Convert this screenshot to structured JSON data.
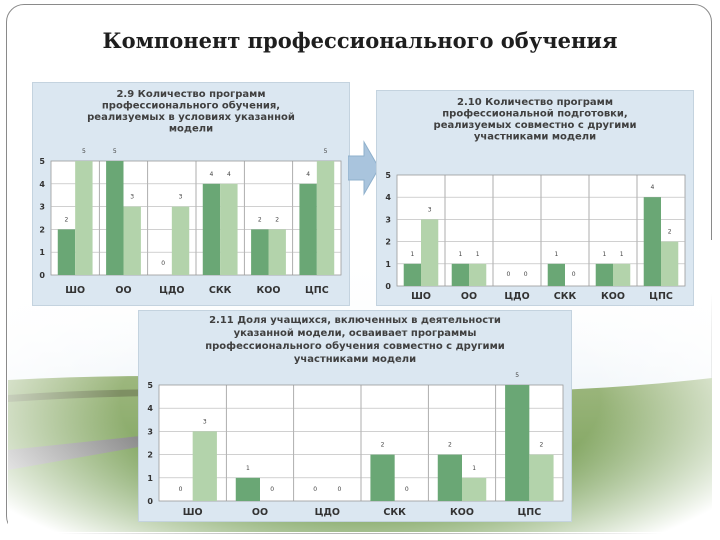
{
  "slide": {
    "title": "Компонент профессионального обучения",
    "colors": {
      "series_dark": "#6aa775",
      "series_light": "#b3d3ab",
      "panel_bg": "#dbe7f1",
      "arrow": "#a9c4dd"
    }
  },
  "chart_data": [
    {
      "type": "bar",
      "title_lines": [
        "2.9 Количество программ",
        "профессионального обучения,",
        "реализуемых в условиях указанной",
        "модели"
      ],
      "categories": [
        "ШО",
        "ОО",
        "ЦДО",
        "СКК",
        "КОО",
        "ЦПС"
      ],
      "series": [
        {
          "values": [
            2,
            5,
            0,
            4,
            2,
            4
          ]
        },
        {
          "values": [
            5,
            3,
            3,
            4,
            2,
            5
          ]
        }
      ],
      "ylim": [
        0,
        5
      ],
      "yticks": [
        "0",
        "1",
        "2",
        "3",
        "4",
        "5"
      ],
      "grid": true
    },
    {
      "type": "bar",
      "title_lines": [
        "2.10 Количество программ",
        "профессиональной подготовки,",
        "реализуемых совместно с другими",
        "участниками модели"
      ],
      "categories": [
        "ШО",
        "ОО",
        "ЦДО",
        "СКК",
        "КОО",
        "ЦПС"
      ],
      "series": [
        {
          "values": [
            1,
            1,
            0,
            1,
            1,
            4
          ]
        },
        {
          "values": [
            3,
            1,
            0,
            0,
            1,
            2
          ]
        }
      ],
      "ylim": [
        0,
        5
      ],
      "yticks": [
        "0",
        "1",
        "2",
        "3",
        "4",
        "5"
      ],
      "grid": true
    },
    {
      "type": "bar",
      "title_lines": [
        "2.11 Доля учащихся, включенных в деятельности",
        "указанной модели, осваивает программы",
        "профессионального обучения совместно с другими",
        "участниками модели"
      ],
      "categories": [
        "ШО",
        "ОО",
        "ЦДО",
        "СКК",
        "КОО",
        "ЦПС"
      ],
      "series": [
        {
          "values": [
            0,
            1,
            0,
            2,
            2,
            5
          ]
        },
        {
          "values": [
            3,
            0,
            0,
            0,
            1,
            2
          ]
        }
      ],
      "ylim": [
        0,
        5
      ],
      "yticks": [
        "0",
        "1",
        "2",
        "3",
        "4",
        "5"
      ],
      "grid": true
    }
  ]
}
